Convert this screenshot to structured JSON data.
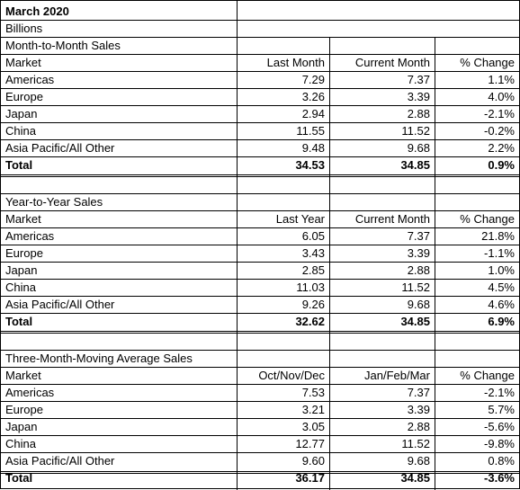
{
  "title": "March 2020",
  "unit": "Billions",
  "sections": [
    {
      "heading": "Month-to-Month Sales",
      "columns": [
        "Market",
        "Last Month",
        "Current Month",
        "% Change"
      ],
      "rows": [
        [
          "Americas",
          "7.29",
          "7.37",
          "1.1%"
        ],
        [
          "Europe",
          "3.26",
          "3.39",
          "4.0%"
        ],
        [
          "Japan",
          "2.94",
          "2.88",
          "-2.1%"
        ],
        [
          "China",
          "11.55",
          "11.52",
          "-0.2%"
        ],
        [
          "Asia Pacific/All Other",
          "9.48",
          "9.68",
          "2.2%"
        ]
      ],
      "total": [
        "Total",
        "34.53",
        "34.85",
        "0.9%"
      ]
    },
    {
      "heading": "Year-to-Year Sales",
      "columns": [
        "Market",
        "Last Year",
        "Current Month",
        "% Change"
      ],
      "rows": [
        [
          "Americas",
          "6.05",
          "7.37",
          "21.8%"
        ],
        [
          "Europe",
          "3.43",
          "3.39",
          "-1.1%"
        ],
        [
          "Japan",
          "2.85",
          "2.88",
          "1.0%"
        ],
        [
          "China",
          "11.03",
          "11.52",
          "4.5%"
        ],
        [
          "Asia Pacific/All Other",
          "9.26",
          "9.68",
          "4.6%"
        ]
      ],
      "total": [
        "Total",
        "32.62",
        "34.85",
        "6.9%"
      ]
    },
    {
      "heading": "Three-Month-Moving Average Sales",
      "columns": [
        "Market",
        "Oct/Nov/Dec",
        "Jan/Feb/Mar",
        "% Change"
      ],
      "rows": [
        [
          "Americas",
          "7.53",
          "7.37",
          "-2.1%"
        ],
        [
          "Europe",
          "3.21",
          "3.39",
          "5.7%"
        ],
        [
          "Japan",
          "3.05",
          "2.88",
          "-5.6%"
        ],
        [
          "China",
          "12.77",
          "11.52",
          "-9.8%"
        ],
        [
          "Asia Pacific/All Other",
          "9.60",
          "9.68",
          "0.8%"
        ]
      ],
      "total": [
        "Total",
        "36.17",
        "34.85",
        "-3.6%"
      ]
    }
  ]
}
